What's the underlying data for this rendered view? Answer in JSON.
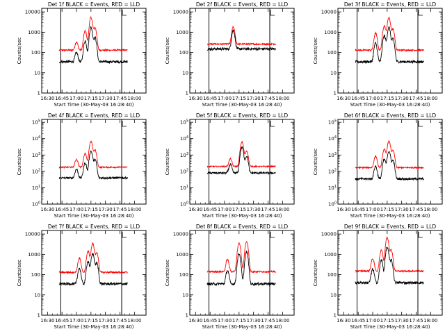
{
  "figure": {
    "panel_count": 9,
    "colors": {
      "events": "#000000",
      "lld": "#ff0000",
      "marker": "#000000",
      "background": "#ffffff"
    },
    "legend_text": "BLACK = Events, RED = LLD"
  },
  "chart_data": [
    {
      "id": "p1",
      "type": "line",
      "title": "Det 1f BLACK = Events, RED = LLD",
      "ylabel": "Counts/sec",
      "xlabel": "Start Time (30-May-03 16:28:40)",
      "yscale": "log",
      "ytick_style": "plain",
      "ylim": [
        1,
        15000
      ],
      "yticks": [
        1,
        10,
        100,
        1000,
        10000
      ],
      "ytick_labels": [
        "1",
        "10",
        "100",
        "1000",
        "10000"
      ],
      "xlim": [
        16.4,
        18.2
      ],
      "xticks": [
        16.5,
        16.75,
        17.0,
        17.25,
        17.5,
        17.75,
        18.0
      ],
      "xtick_labels": [
        "16:30",
        "16:45",
        "17:00",
        "17:15",
        "17:30",
        "17:45",
        "18:00"
      ],
      "vlines": [
        16.73,
        17.78
      ],
      "start": 16.7,
      "end": 17.88,
      "lld_base": 130,
      "events_base": 35,
      "peaks": [
        {
          "t": 17.0,
          "a": 1.5
        },
        {
          "t": 17.15,
          "a": 8
        },
        {
          "t": 17.25,
          "a": 40
        },
        {
          "t": 17.32,
          "a": 12
        }
      ],
      "series": [
        {
          "name": "Events"
        },
        {
          "name": "LLD"
        }
      ]
    },
    {
      "id": "p2",
      "type": "line",
      "title": "Det 2f BLACK = Events, RED = LLD",
      "ylabel": "Counts/sec",
      "xlabel": "Start Time (30-May-03 16:28:40)",
      "yscale": "log",
      "ytick_style": "plain",
      "ylim": [
        1,
        15000
      ],
      "yticks": [
        1,
        10,
        100,
        1000,
        10000
      ],
      "ytick_labels": [
        "1",
        "10",
        "100",
        "1000",
        "10000"
      ],
      "xlim": [
        16.4,
        18.2
      ],
      "xticks": [
        16.5,
        16.75,
        17.0,
        17.25,
        17.5,
        17.75,
        18.0
      ],
      "xtick_labels": [
        "16:30",
        "16:45",
        "17:00",
        "17:15",
        "17:30",
        "17:45",
        "18:00"
      ],
      "vlines": [
        16.73,
        17.78
      ],
      "start": 16.7,
      "end": 17.88,
      "lld_base": 260,
      "events_base": 150,
      "peaks": [
        {
          "t": 17.15,
          "a": 6
        }
      ],
      "series": [
        {
          "name": "Events"
        },
        {
          "name": "LLD"
        }
      ]
    },
    {
      "id": "p3",
      "type": "line",
      "title": "Det 3f BLACK = Events, RED = LLD",
      "ylabel": "Counts/sec",
      "xlabel": "Start Time (30-May-03 16:28:40)",
      "yscale": "log",
      "ytick_style": "plain",
      "ylim": [
        1,
        15000
      ],
      "yticks": [
        1,
        10,
        100,
        1000,
        10000
      ],
      "ytick_labels": [
        "1",
        "10",
        "100",
        "1000",
        "10000"
      ],
      "xlim": [
        16.4,
        18.2
      ],
      "xticks": [
        16.5,
        16.75,
        17.0,
        17.25,
        17.5,
        17.75,
        18.0
      ],
      "xtick_labels": [
        "16:30",
        "16:45",
        "17:00",
        "17:15",
        "17:30",
        "17:45",
        "18:00"
      ],
      "vlines": [
        16.73,
        17.78
      ],
      "start": 16.7,
      "end": 17.88,
      "lld_base": 130,
      "events_base": 35,
      "peaks": [
        {
          "t": 17.05,
          "a": 6
        },
        {
          "t": 17.2,
          "a": 15
        },
        {
          "t": 17.28,
          "a": 40
        },
        {
          "t": 17.35,
          "a": 10
        }
      ],
      "series": [
        {
          "name": "Events"
        },
        {
          "name": "LLD"
        }
      ]
    },
    {
      "id": "p4",
      "type": "line",
      "title": "Det 4f BLACK = Events, RED = LLD",
      "ylabel": "Counts/sec",
      "xlabel": "Start Time (30-May-03 16:28:40)",
      "yscale": "log",
      "ytick_style": "exp",
      "ylim": [
        1,
        150000
      ],
      "yticks": [
        1,
        10,
        100,
        1000,
        10000,
        100000
      ],
      "ytick_labels": [
        "10",
        "10",
        "10",
        "10",
        "10",
        "10"
      ],
      "ytick_exps": [
        "0",
        "1",
        "2",
        "3",
        "4",
        "5"
      ],
      "xlim": [
        16.4,
        18.2
      ],
      "xticks": [
        16.5,
        16.75,
        17.0,
        17.25,
        17.5,
        17.75,
        18.0
      ],
      "xtick_labels": [
        "16:30",
        "16:45",
        "17:00",
        "17:15",
        "17:30",
        "17:45",
        "18:00"
      ],
      "vlines": [
        16.73,
        17.78
      ],
      "start": 16.7,
      "end": 17.88,
      "lld_base": 180,
      "events_base": 40,
      "peaks": [
        {
          "t": 17.0,
          "a": 2
        },
        {
          "t": 17.15,
          "a": 6
        },
        {
          "t": 17.25,
          "a": 35
        },
        {
          "t": 17.32,
          "a": 10
        }
      ],
      "series": [
        {
          "name": "Events"
        },
        {
          "name": "LLD"
        }
      ]
    },
    {
      "id": "p5",
      "type": "line",
      "title": "Det 5f BLACK = Events, RED = LLD",
      "ylabel": "Counts/sec",
      "xlabel": "Start Time (30-May-03 16:28:40)",
      "yscale": "log",
      "ytick_style": "exp",
      "ylim": [
        1,
        150000
      ],
      "yticks": [
        1,
        10,
        100,
        1000,
        10000,
        100000
      ],
      "ytick_labels": [
        "10",
        "10",
        "10",
        "10",
        "10",
        "10"
      ],
      "ytick_exps": [
        "0",
        "1",
        "2",
        "3",
        "4",
        "5"
      ],
      "xlim": [
        16.4,
        18.2
      ],
      "xticks": [
        16.5,
        16.75,
        17.0,
        17.25,
        17.5,
        17.75,
        18.0
      ],
      "xtick_labels": [
        "16:30",
        "16:45",
        "17:00",
        "17:15",
        "17:30",
        "17:45",
        "18:00"
      ],
      "vlines": [
        16.73,
        17.78
      ],
      "start": 16.7,
      "end": 17.88,
      "lld_base": 200,
      "events_base": 80,
      "peaks": [
        {
          "t": 17.1,
          "a": 2
        },
        {
          "t": 17.3,
          "a": 30
        },
        {
          "t": 17.38,
          "a": 8
        }
      ],
      "series": [
        {
          "name": "Events"
        },
        {
          "name": "LLD"
        }
      ]
    },
    {
      "id": "p6",
      "type": "line",
      "title": "Det 6f BLACK = Events, RED = LLD",
      "ylabel": "Counts/sec",
      "xlabel": "Start Time (30-May-03 16:28:40)",
      "yscale": "log",
      "ytick_style": "exp",
      "ylim": [
        1,
        150000
      ],
      "yticks": [
        1,
        10,
        100,
        1000,
        10000,
        100000
      ],
      "ytick_labels": [
        "10",
        "10",
        "10",
        "10",
        "10",
        "10"
      ],
      "ytick_exps": [
        "0",
        "1",
        "2",
        "3",
        "4",
        "5"
      ],
      "xlim": [
        16.4,
        18.2
      ],
      "xticks": [
        16.5,
        16.75,
        17.0,
        17.25,
        17.5,
        17.75,
        18.0
      ],
      "xtick_labels": [
        "16:30",
        "16:45",
        "17:00",
        "17:15",
        "17:30",
        "17:45",
        "18:00"
      ],
      "vlines": [
        16.73,
        17.78
      ],
      "start": 16.7,
      "end": 17.88,
      "lld_base": 170,
      "events_base": 35,
      "peaks": [
        {
          "t": 17.05,
          "a": 4
        },
        {
          "t": 17.2,
          "a": 12
        },
        {
          "t": 17.28,
          "a": 40
        },
        {
          "t": 17.35,
          "a": 10
        }
      ],
      "series": [
        {
          "name": "Events"
        },
        {
          "name": "LLD"
        }
      ]
    },
    {
      "id": "p7",
      "type": "line",
      "title": "Det 7f BLACK = Events, RED = LLD",
      "ylabel": "Counts/sec",
      "xlabel": "Start Time (30-May-03 16:28:40)",
      "yscale": "log",
      "ytick_style": "plain",
      "ylim": [
        1,
        15000
      ],
      "yticks": [
        1,
        10,
        100,
        1000,
        10000
      ],
      "ytick_labels": [
        "1",
        "10",
        "100",
        "1000",
        "10000"
      ],
      "xlim": [
        16.4,
        18.2
      ],
      "xticks": [
        16.5,
        16.75,
        17.0,
        17.25,
        17.5,
        17.75,
        18.0
      ],
      "xtick_labels": [
        "16:30",
        "16:45",
        "17:00",
        "17:15",
        "17:30",
        "17:45",
        "18:00"
      ],
      "vlines": [
        16.73,
        17.78
      ],
      "start": 16.7,
      "end": 17.88,
      "lld_base": 130,
      "events_base": 35,
      "peaks": [
        {
          "t": 17.05,
          "a": 4
        },
        {
          "t": 17.2,
          "a": 10
        },
        {
          "t": 17.28,
          "a": 25
        },
        {
          "t": 17.35,
          "a": 8
        }
      ],
      "series": [
        {
          "name": "Events"
        },
        {
          "name": "LLD"
        }
      ]
    },
    {
      "id": "p8",
      "type": "line",
      "title": "Det 8f BLACK = Events, RED = LLD",
      "ylabel": "Counts/sec",
      "xlabel": "Start Time (30-May-03 16:28:40)",
      "yscale": "log",
      "ytick_style": "plain",
      "ylim": [
        1,
        15000
      ],
      "yticks": [
        1,
        10,
        100,
        1000,
        10000
      ],
      "ytick_labels": [
        "1",
        "10",
        "100",
        "1000",
        "10000"
      ],
      "xlim": [
        16.4,
        18.2
      ],
      "xticks": [
        16.5,
        16.75,
        17.0,
        17.25,
        17.5,
        17.75,
        18.0
      ],
      "xtick_labels": [
        "16:30",
        "16:45",
        "17:00",
        "17:15",
        "17:30",
        "17:45",
        "18:00"
      ],
      "vlines": [
        16.73,
        17.78
      ],
      "start": 16.7,
      "end": 17.88,
      "lld_base": 140,
      "events_base": 35,
      "peaks": [
        {
          "t": 17.05,
          "a": 3
        },
        {
          "t": 17.25,
          "a": 25
        },
        {
          "t": 17.38,
          "a": 30
        }
      ],
      "series": [
        {
          "name": "Events"
        },
        {
          "name": "LLD"
        }
      ]
    },
    {
      "id": "p9",
      "type": "line",
      "title": "Det 9f BLACK = Events, RED = LLD",
      "ylabel": "Counts/sec",
      "xlabel": "Start Time (30-May-03 16:28:40)",
      "yscale": "log",
      "ytick_style": "plain",
      "ylim": [
        1,
        15000
      ],
      "yticks": [
        1,
        10,
        100,
        1000,
        10000
      ],
      "ytick_labels": [
        "1",
        "10",
        "100",
        "1000",
        "10000"
      ],
      "xlim": [
        16.4,
        18.2
      ],
      "xticks": [
        16.5,
        16.75,
        17.0,
        17.25,
        17.5,
        17.75,
        18.0
      ],
      "xtick_labels": [
        "16:30",
        "16:45",
        "17:00",
        "17:15",
        "17:30",
        "17:45",
        "18:00"
      ],
      "vlines": [
        16.73,
        17.78
      ],
      "start": 16.7,
      "end": 17.88,
      "lld_base": 150,
      "events_base": 40,
      "peaks": [
        {
          "t": 17.0,
          "a": 3
        },
        {
          "t": 17.15,
          "a": 10
        },
        {
          "t": 17.25,
          "a": 45
        },
        {
          "t": 17.32,
          "a": 10
        }
      ],
      "series": [
        {
          "name": "Events"
        },
        {
          "name": "LLD"
        }
      ]
    }
  ]
}
